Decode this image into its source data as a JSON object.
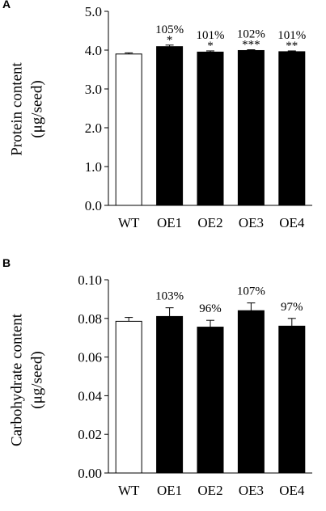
{
  "chart_data": [
    {
      "type": "bar",
      "panel": "A",
      "categories": [
        "WT",
        "OE1",
        "OE2",
        "OE3",
        "OE4"
      ],
      "values": [
        3.9,
        4.09,
        3.95,
        3.99,
        3.96
      ],
      "errors": [
        0.03,
        0.04,
        0.03,
        0.02,
        0.02
      ],
      "fills": [
        "#ffffff",
        "#000000",
        "#000000",
        "#000000",
        "#000000"
      ],
      "percent_labels": [
        "",
        "105%",
        "101%",
        "102%",
        "101%"
      ],
      "significance": [
        "",
        "*",
        "*",
        "***",
        "**"
      ],
      "ylabel_line1": "Protein content",
      "ylabel_line2": "(μg/seed)",
      "ylim": [
        0,
        5
      ],
      "yticks": [
        "0.0",
        "1.0",
        "2.0",
        "3.0",
        "4.0",
        "5.0"
      ],
      "grid": false
    },
    {
      "type": "bar",
      "panel": "B",
      "categories": [
        "WT",
        "OE1",
        "OE2",
        "OE3",
        "OE4"
      ],
      "values": [
        0.0785,
        0.081,
        0.0755,
        0.084,
        0.076
      ],
      "errors": [
        0.002,
        0.0045,
        0.0035,
        0.004,
        0.004
      ],
      "fills": [
        "#ffffff",
        "#000000",
        "#000000",
        "#000000",
        "#000000"
      ],
      "percent_labels": [
        "",
        "103%",
        "96%",
        "107%",
        "97%"
      ],
      "significance": [
        "",
        "",
        "",
        "",
        ""
      ],
      "ylabel_line1": "Carbohydrate content",
      "ylabel_line2": "(μg/seed)",
      "ylim": [
        0,
        0.1
      ],
      "yticks": [
        "0.00",
        "0.02",
        "0.04",
        "0.06",
        "0.08",
        "0.10"
      ],
      "grid": false
    }
  ]
}
